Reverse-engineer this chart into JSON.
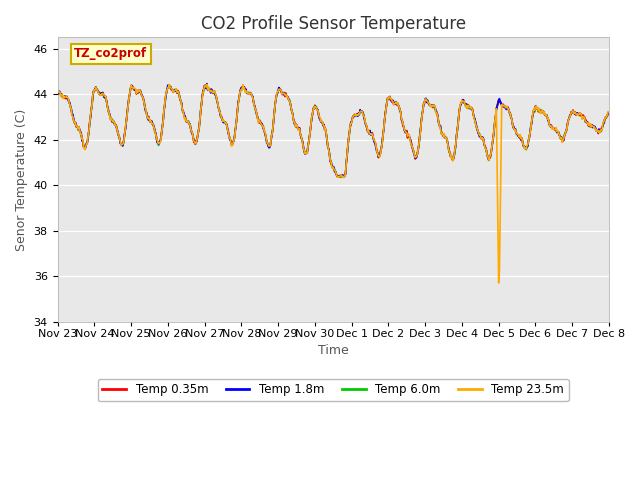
{
  "title": "CO2 Profile Sensor Temperature",
  "xlabel": "Time",
  "ylabel": "Senor Temperature (C)",
  "annotation": "TZ_co2prof",
  "ylim": [
    34,
    46.5
  ],
  "yticks": [
    34,
    36,
    38,
    40,
    42,
    44,
    46
  ],
  "xtick_labels": [
    "Nov 23",
    "Nov 24",
    "Nov 25",
    "Nov 26",
    "Nov 27",
    "Nov 28",
    "Nov 29",
    "Nov 30",
    "Dec 1",
    "Dec 2",
    "Dec 3",
    "Dec 4",
    "Dec 5",
    "Dec 6",
    "Dec 7",
    "Dec 8"
  ],
  "colors": {
    "red": "#ff0000",
    "blue": "#0000ff",
    "green": "#00cc00",
    "orange": "#ffaa00"
  },
  "legend_labels": [
    "Temp 0.35m",
    "Temp 1.8m",
    "Temp 6.0m",
    "Temp 23.5m"
  ],
  "background_color": "#e8e8e8",
  "figure_background": "#ffffff",
  "annotation_bg": "#ffffcc",
  "annotation_border": "#ccaa00",
  "title_fontsize": 12,
  "axis_fontsize": 9,
  "tick_fontsize": 8,
  "linewidth": 1.2
}
